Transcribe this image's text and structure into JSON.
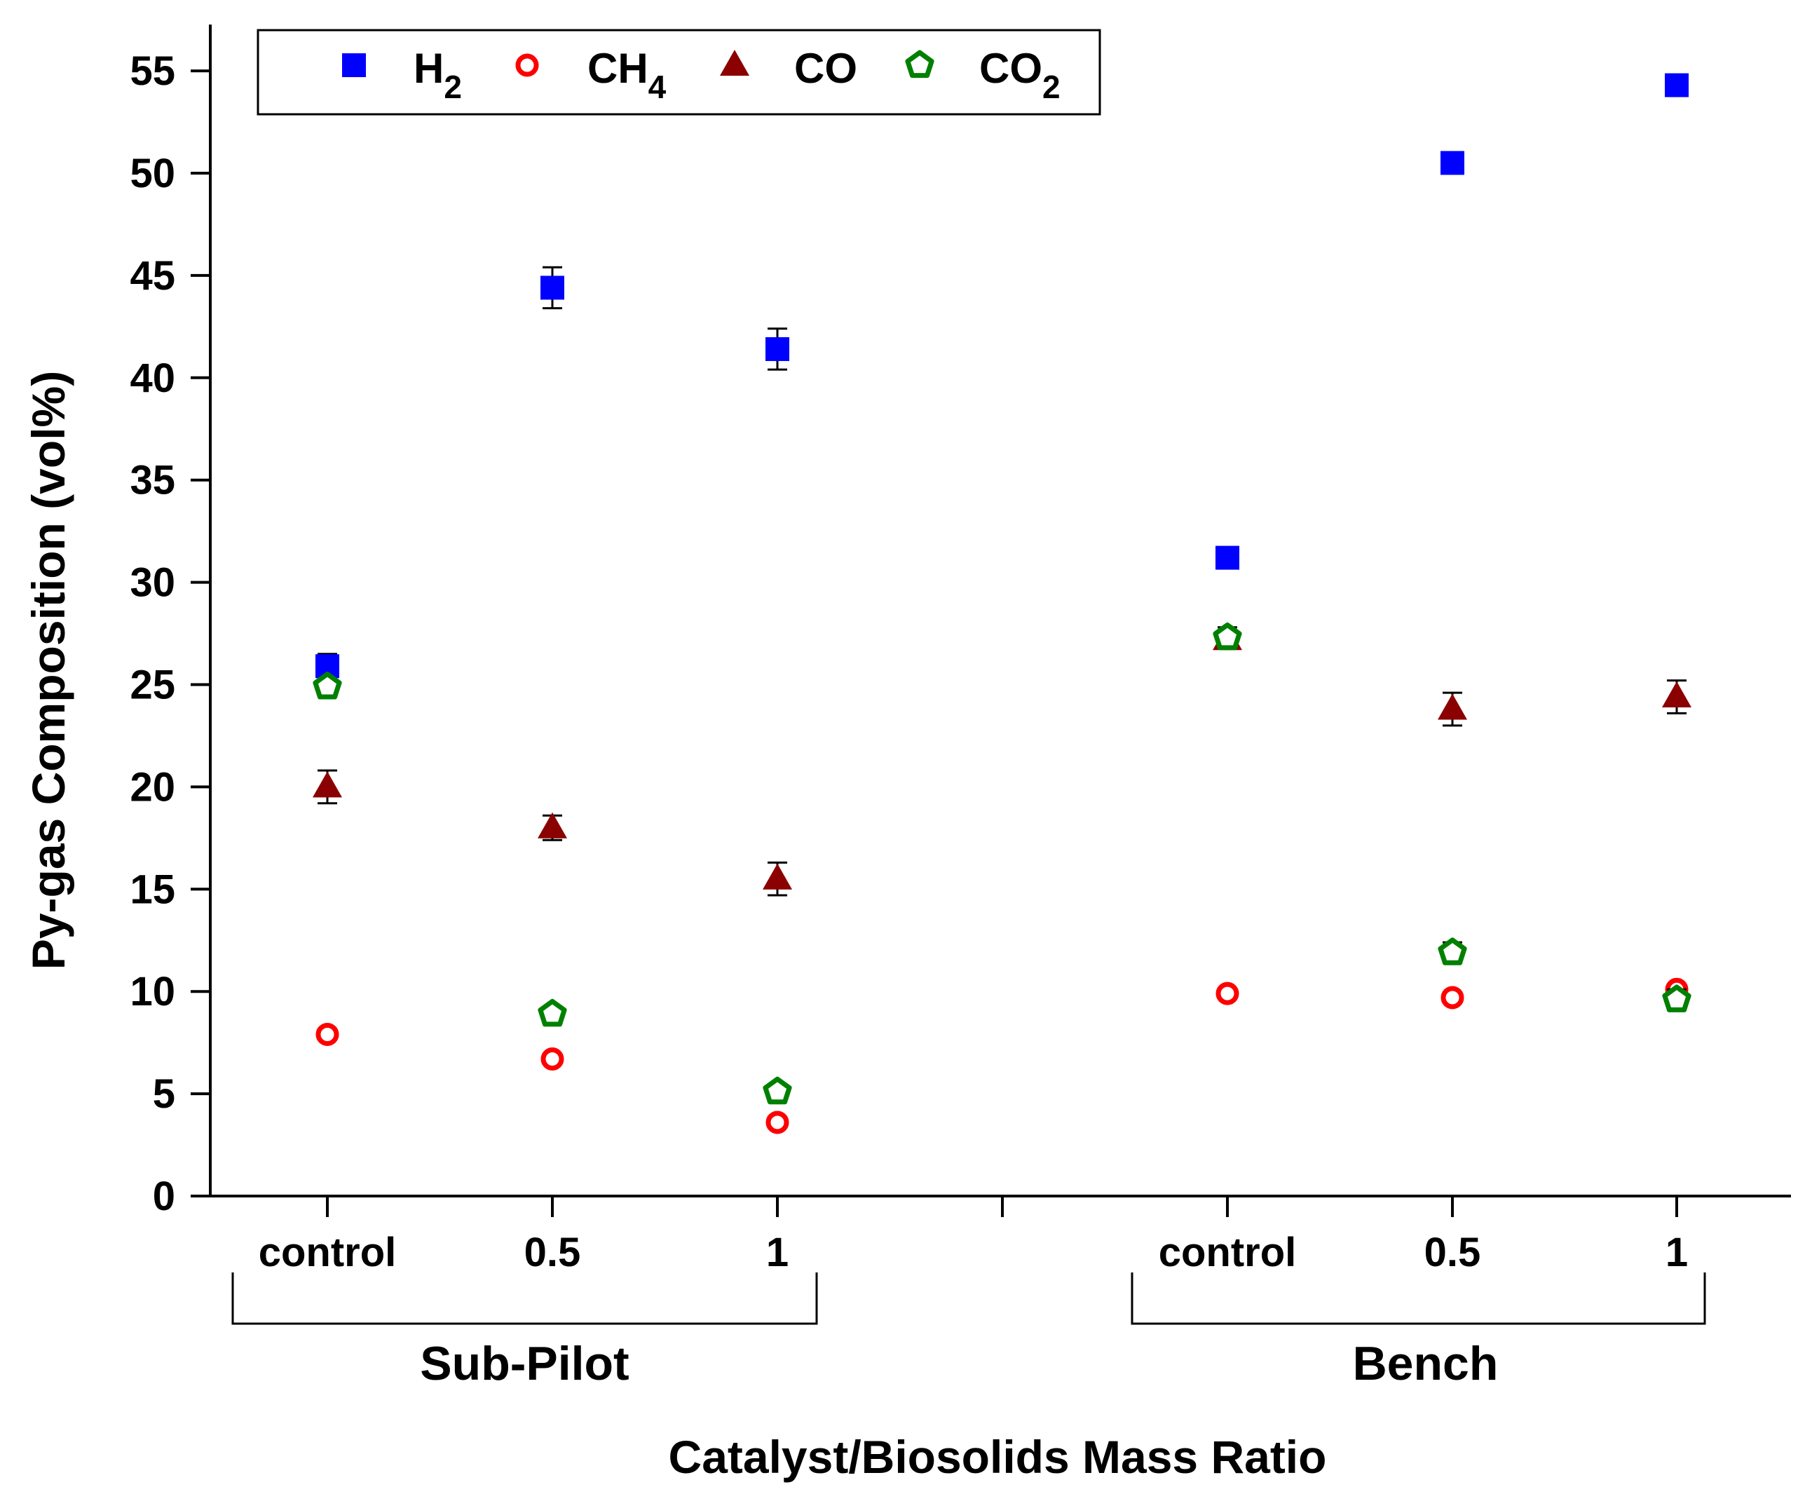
{
  "chart_data": {
    "type": "scatter",
    "title": "",
    "ylabel": "Py-gas Composition (vol%)",
    "xlabel": "Catalyst/Biosolids Mass Ratio",
    "ylim": [
      0,
      55
    ],
    "yticks": [
      0,
      5,
      10,
      15,
      20,
      25,
      30,
      35,
      40,
      45,
      50,
      55
    ],
    "categories": [
      "control",
      "0.5",
      "1",
      "control",
      "0.5",
      "1"
    ],
    "groups": [
      {
        "name": "Sub-Pilot",
        "categories": [
          "control",
          "0.5",
          "1"
        ]
      },
      {
        "name": "Bench",
        "categories": [
          "control",
          "0.5",
          "1"
        ]
      }
    ],
    "legend_position": "top-left",
    "series": [
      {
        "name": "H2",
        "label": "H",
        "sub": "2",
        "marker": "square",
        "color": "#0000ff",
        "values": [
          25.9,
          44.4,
          41.4,
          31.2,
          50.5,
          54.3
        ],
        "errors": [
          0.6,
          1.0,
          1.0,
          0.3,
          0.3,
          0.3
        ]
      },
      {
        "name": "CH4",
        "label": "CH",
        "sub": "4",
        "marker": "circle-open",
        "color": "#ff0000",
        "values": [
          7.9,
          6.7,
          3.6,
          9.9,
          9.7,
          10.1
        ],
        "errors": [
          0.2,
          0.2,
          0.2,
          0.2,
          0.2,
          0.2
        ]
      },
      {
        "name": "CO",
        "label": "CO",
        "sub": "",
        "marker": "triangle",
        "color": "#8b0000",
        "values": [
          20.0,
          18.0,
          15.5,
          27.2,
          23.8,
          24.4
        ],
        "errors": [
          0.8,
          0.6,
          0.8,
          0.3,
          0.8,
          0.8
        ]
      },
      {
        "name": "CO2",
        "label": "CO",
        "sub": "2",
        "marker": "pentagon-open",
        "color": "#008000",
        "values": [
          24.9,
          8.9,
          5.1,
          27.3,
          11.9,
          9.6
        ],
        "errors": [
          0.3,
          0.2,
          0.2,
          0.5,
          0.5,
          0.5
        ]
      }
    ]
  }
}
